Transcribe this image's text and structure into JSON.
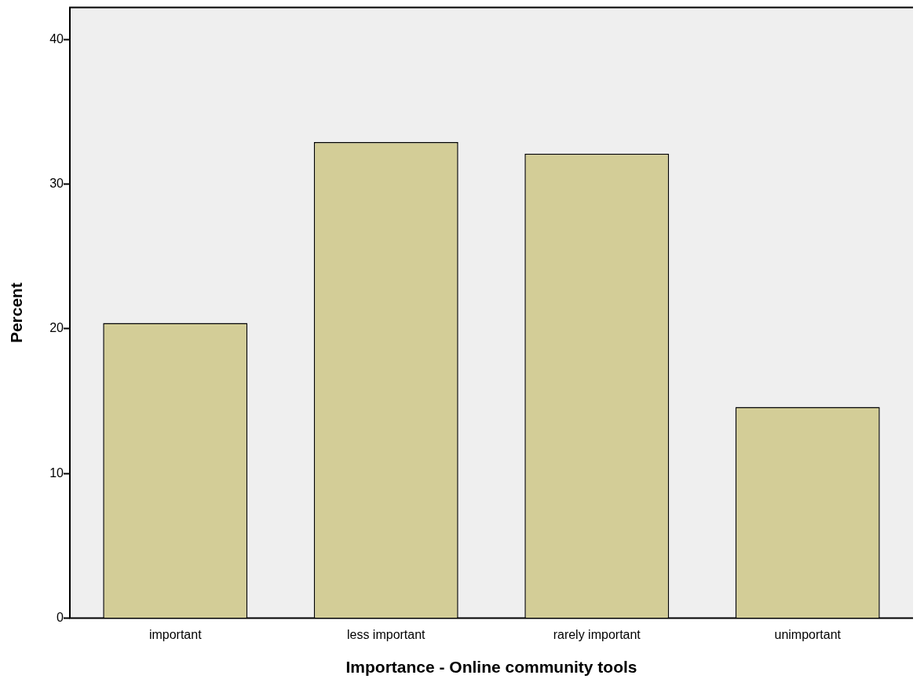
{
  "chart_data": {
    "type": "bar",
    "xlabel": "Importance - Online community tools",
    "ylabel": "Percent",
    "categories": [
      "important",
      "less important",
      "rarely important",
      "unimportant"
    ],
    "values": [
      20.4,
      32.9,
      32.1,
      14.6
    ],
    "color": "#d3cd97",
    "ylim": [
      0,
      42.2
    ],
    "yticks": [
      0,
      10,
      20,
      30,
      40
    ],
    "grid": false,
    "legend": false
  }
}
